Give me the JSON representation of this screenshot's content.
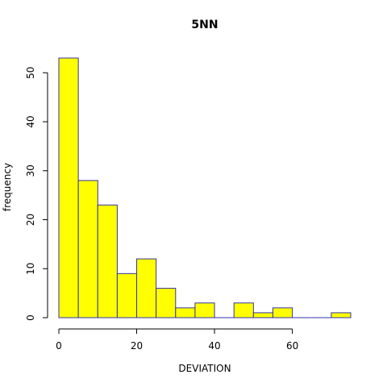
{
  "chart_data": {
    "type": "bar",
    "title": "5NN",
    "xlabel": "DEVIATION",
    "ylabel": "frequency",
    "bin_width": 5,
    "bins": [
      {
        "x0": 0,
        "x1": 5,
        "count": 53
      },
      {
        "x0": 5,
        "x1": 10,
        "count": 28
      },
      {
        "x0": 10,
        "x1": 15,
        "count": 23
      },
      {
        "x0": 15,
        "x1": 20,
        "count": 9
      },
      {
        "x0": 20,
        "x1": 25,
        "count": 12
      },
      {
        "x0": 25,
        "x1": 30,
        "count": 6
      },
      {
        "x0": 30,
        "x1": 35,
        "count": 2
      },
      {
        "x0": 35,
        "x1": 40,
        "count": 3
      },
      {
        "x0": 40,
        "x1": 45,
        "count": 0
      },
      {
        "x0": 45,
        "x1": 50,
        "count": 3
      },
      {
        "x0": 50,
        "x1": 55,
        "count": 1
      },
      {
        "x0": 55,
        "x1": 60,
        "count": 2
      },
      {
        "x0": 60,
        "x1": 65,
        "count": 0
      },
      {
        "x0": 65,
        "x1": 70,
        "count": 0
      },
      {
        "x0": 70,
        "x1": 75,
        "count": 1
      }
    ],
    "xlim": [
      0,
      75
    ],
    "ylim": [
      0,
      53
    ],
    "x_ticks": [
      0,
      20,
      40,
      60
    ],
    "y_ticks": [
      0,
      10,
      20,
      30,
      40,
      50
    ],
    "grid": false,
    "bar_fill": "#ffff00",
    "bar_border": "#3333aa"
  }
}
